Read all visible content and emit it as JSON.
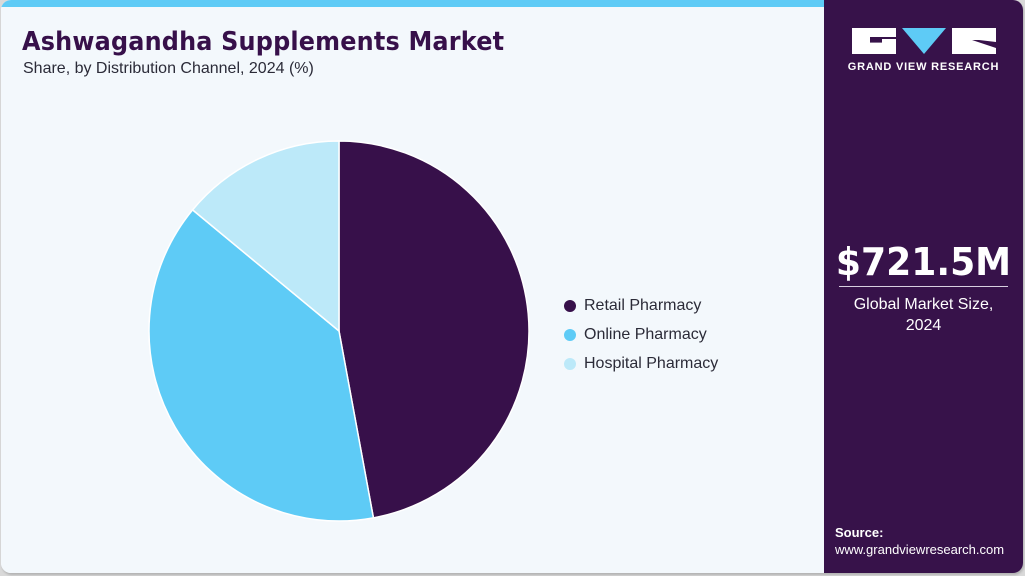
{
  "header": {
    "title": "Ashwagandha Supplements Market",
    "subtitle": "Share, by Distribution Channel, 2024 (%)"
  },
  "colors": {
    "accent_bar": "#5ecbf6",
    "brand_purple": "#37124a",
    "background": "#f3f8fc"
  },
  "legend": {
    "items": [
      {
        "label": "Retail Pharmacy",
        "color": "#37104a"
      },
      {
        "label": "Online Pharmacy",
        "color": "#5ecbf6"
      },
      {
        "label": "Hospital Pharmacy",
        "color": "#bce9f9"
      }
    ]
  },
  "sidebar": {
    "logo_text": "GRAND VIEW RESEARCH",
    "market_value": "$721.5M",
    "market_label_line1": "Global Market Size,",
    "market_label_line2": "2024",
    "source_label": "Source:",
    "source_url": "www.grandviewresearch.com"
  },
  "chart_data": {
    "type": "pie",
    "title": "Ashwagandha Supplements Market",
    "subtitle": "Share, by Distribution Channel, 2024 (%)",
    "categories": [
      "Retail Pharmacy",
      "Online Pharmacy",
      "Hospital Pharmacy"
    ],
    "values": [
      47.1,
      38.9,
      14.0
    ],
    "colors": [
      "#37104a",
      "#5ecbf6",
      "#bce9f9"
    ],
    "start_angle_deg": 0,
    "direction": "clockwise",
    "legend_position": "right",
    "annotations": [
      "$721.5M Global Market Size, 2024"
    ]
  }
}
